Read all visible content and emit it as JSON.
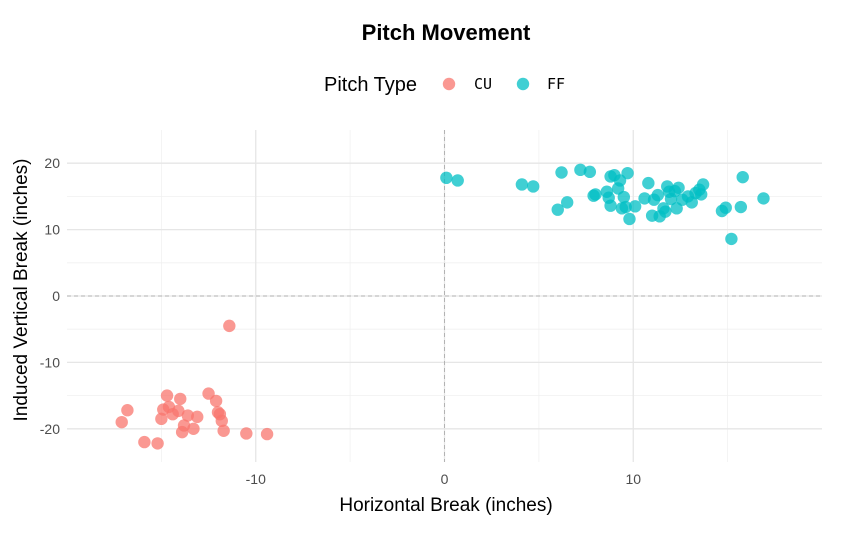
{
  "chart_data": {
    "type": "scatter",
    "title": "Pitch Movement",
    "xlabel": "Horizontal Break (inches)",
    "ylabel": "Induced Vertical Break (inches)",
    "xlim": [
      -20,
      20
    ],
    "ylim": [
      -25,
      25
    ],
    "x_ticks": [
      -10,
      0,
      10
    ],
    "y_ticks": [
      -20,
      -10,
      0,
      10,
      20
    ],
    "reference_lines": {
      "x": 0,
      "y": 0
    },
    "grid": true,
    "legend": {
      "title": "Pitch Type",
      "position": "top"
    },
    "series": [
      {
        "name": "CU",
        "color": "#F8766D",
        "points": [
          [
            -17.1,
            -19.0
          ],
          [
            -16.8,
            -17.2
          ],
          [
            -15.9,
            -22.0
          ],
          [
            -15.2,
            -22.2
          ],
          [
            -15.0,
            -18.5
          ],
          [
            -14.9,
            -17.1
          ],
          [
            -14.7,
            -15.0
          ],
          [
            -14.6,
            -16.7
          ],
          [
            -14.4,
            -17.8
          ],
          [
            -14.1,
            -17.3
          ],
          [
            -14.0,
            -15.5
          ],
          [
            -13.9,
            -20.5
          ],
          [
            -13.8,
            -19.5
          ],
          [
            -13.6,
            -18.0
          ],
          [
            -13.3,
            -20.0
          ],
          [
            -13.1,
            -18.2
          ],
          [
            -12.5,
            -14.7
          ],
          [
            -12.1,
            -15.8
          ],
          [
            -12.0,
            -17.5
          ],
          [
            -11.9,
            -17.8
          ],
          [
            -11.8,
            -18.8
          ],
          [
            -11.7,
            -20.3
          ],
          [
            -11.4,
            -4.5
          ],
          [
            -10.5,
            -20.7
          ],
          [
            -9.4,
            -20.8
          ]
        ]
      },
      {
        "name": "FF",
        "color": "#00BFC4",
        "points": [
          [
            0.1,
            17.8
          ],
          [
            0.7,
            17.4
          ],
          [
            4.1,
            16.8
          ],
          [
            4.7,
            16.5
          ],
          [
            6.0,
            13.0
          ],
          [
            6.2,
            18.6
          ],
          [
            6.5,
            14.1
          ],
          [
            7.2,
            19.0
          ],
          [
            7.7,
            18.7
          ],
          [
            7.9,
            15.1
          ],
          [
            8.0,
            15.3
          ],
          [
            8.6,
            15.7
          ],
          [
            8.7,
            14.8
          ],
          [
            8.8,
            13.6
          ],
          [
            8.8,
            18.0
          ],
          [
            9.0,
            18.2
          ],
          [
            9.2,
            16.2
          ],
          [
            9.3,
            17.4
          ],
          [
            9.4,
            13.2
          ],
          [
            9.5,
            14.9
          ],
          [
            9.6,
            13.4
          ],
          [
            9.7,
            18.5
          ],
          [
            9.8,
            11.6
          ],
          [
            10.1,
            13.5
          ],
          [
            10.6,
            14.7
          ],
          [
            10.8,
            17.0
          ],
          [
            11.0,
            12.1
          ],
          [
            11.1,
            14.5
          ],
          [
            11.3,
            15.2
          ],
          [
            11.4,
            12.0
          ],
          [
            11.6,
            13.2
          ],
          [
            11.7,
            12.7
          ],
          [
            11.8,
            16.5
          ],
          [
            11.9,
            15.7
          ],
          [
            12.0,
            14.6
          ],
          [
            12.2,
            15.8
          ],
          [
            12.3,
            13.2
          ],
          [
            12.4,
            16.3
          ],
          [
            12.6,
            14.5
          ],
          [
            12.9,
            15.0
          ],
          [
            13.1,
            14.1
          ],
          [
            13.3,
            15.5
          ],
          [
            13.5,
            16.0
          ],
          [
            13.6,
            15.3
          ],
          [
            13.7,
            16.8
          ],
          [
            14.7,
            12.8
          ],
          [
            14.9,
            13.3
          ],
          [
            15.2,
            8.6
          ],
          [
            15.7,
            13.4
          ],
          [
            15.8,
            17.9
          ],
          [
            16.9,
            14.7
          ]
        ]
      }
    ]
  }
}
